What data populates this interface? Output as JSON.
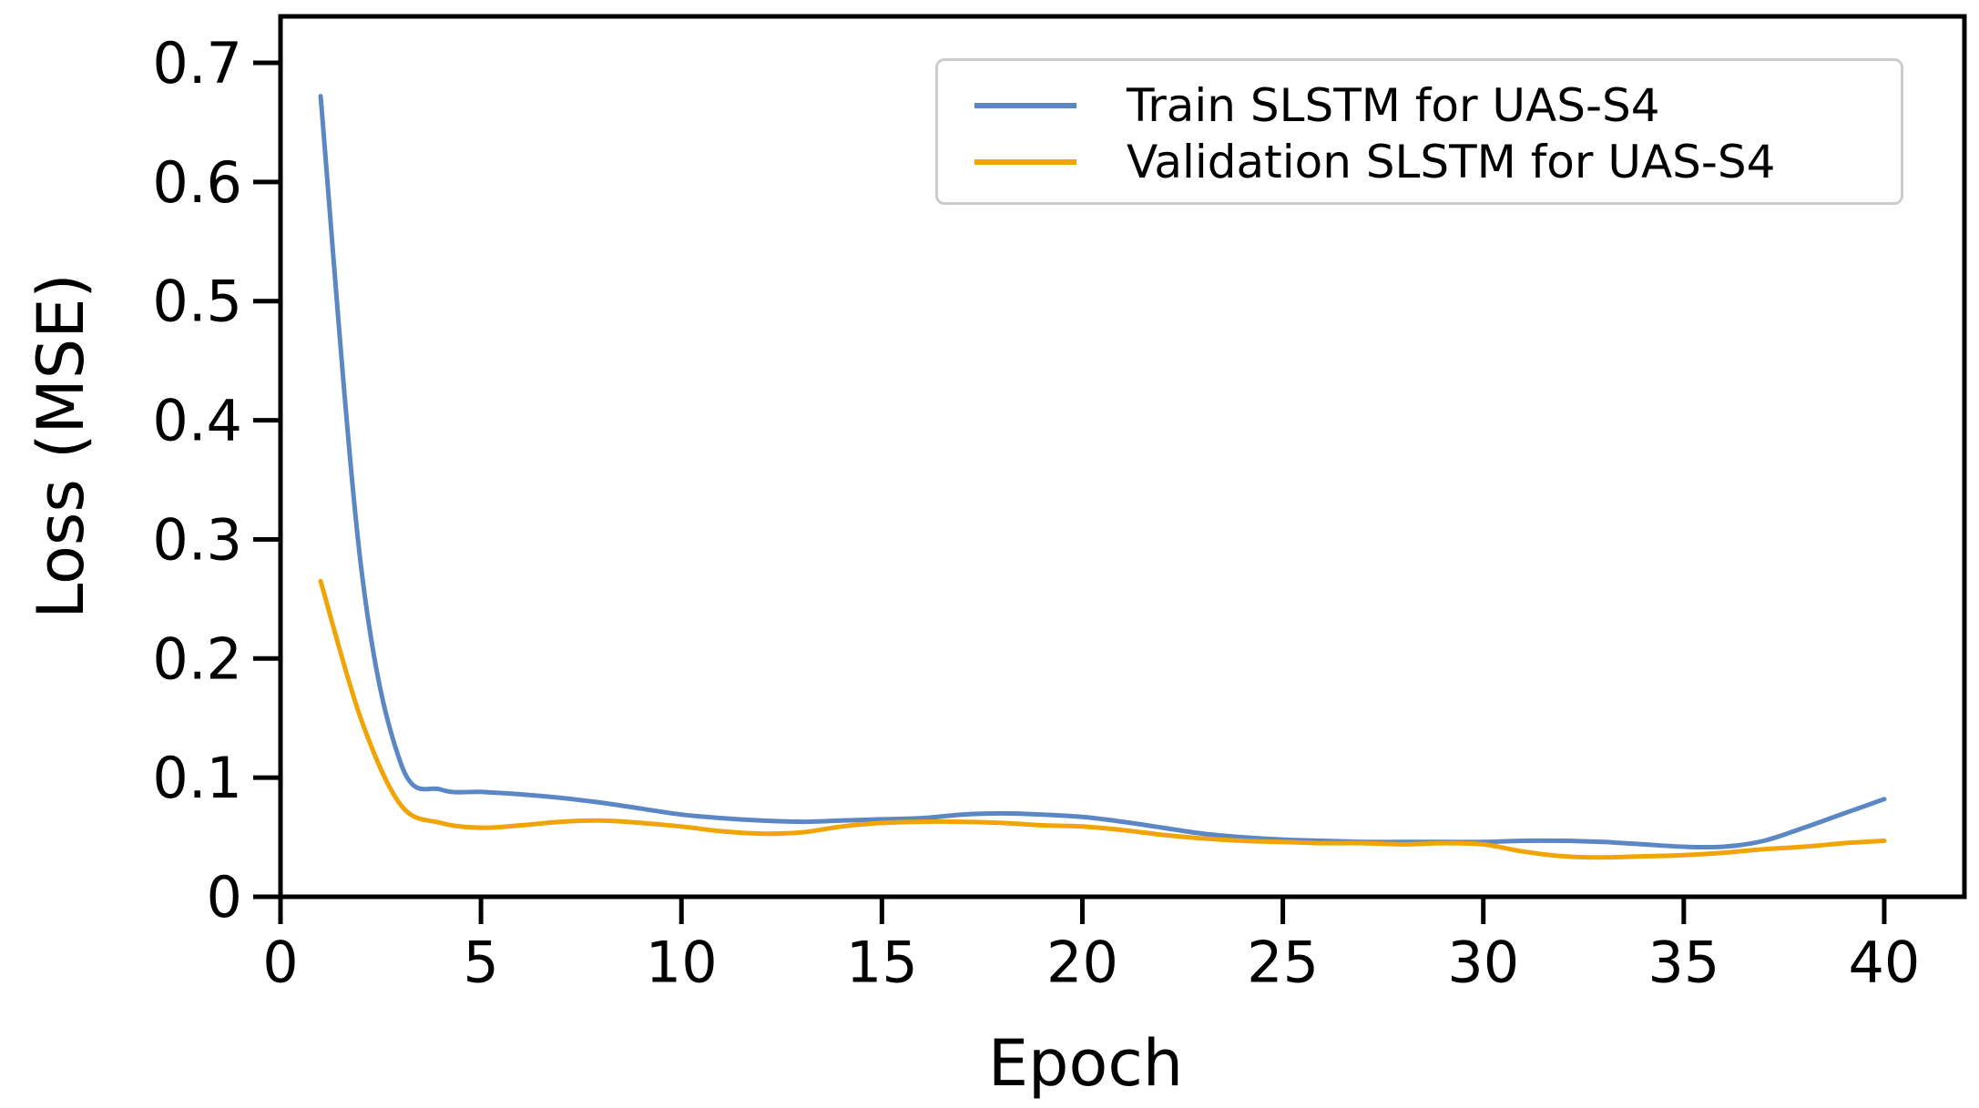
{
  "chart_data": {
    "type": "line",
    "title": "",
    "xlabel": "Epoch",
    "ylabel": "Loss (MSE)",
    "xlim": [
      0,
      42
    ],
    "ylim": [
      0,
      0.739
    ],
    "grid": false,
    "legend_position": "upper right",
    "background": "#ffffff",
    "spine_color": "#000000",
    "xticks": [
      0,
      5,
      10,
      15,
      20,
      25,
      30,
      35,
      40
    ],
    "xtick_labels": [
      "0",
      "5",
      "10",
      "15",
      "20",
      "25",
      "30",
      "35",
      "40"
    ],
    "yticks": [
      0,
      0.1,
      0.2,
      0.3,
      0.4,
      0.5,
      0.6,
      0.7
    ],
    "ytick_labels": [
      "0",
      "0.1",
      "0.2",
      "0.3",
      "0.4",
      "0.5",
      "0.6",
      "0.7"
    ],
    "x": [
      1,
      2,
      3,
      4,
      5,
      6,
      7,
      8,
      9,
      10,
      11,
      12,
      13,
      14,
      15,
      16,
      17,
      18,
      19,
      20,
      21,
      22,
      23,
      24,
      25,
      26,
      27,
      28,
      29,
      30,
      31,
      32,
      33,
      34,
      35,
      36,
      37,
      38,
      39,
      40
    ],
    "series": [
      {
        "name": "Train SLSTM for UAS-S4",
        "color": "#5b87c4",
        "values": [
          0.672,
          0.28,
          0.112,
          0.09,
          0.088,
          0.086,
          0.083,
          0.079,
          0.074,
          0.069,
          0.066,
          0.064,
          0.063,
          0.064,
          0.065,
          0.066,
          0.069,
          0.07,
          0.069,
          0.067,
          0.063,
          0.058,
          0.053,
          0.05,
          0.048,
          0.047,
          0.046,
          0.046,
          0.046,
          0.046,
          0.047,
          0.047,
          0.046,
          0.044,
          0.042,
          0.042,
          0.047,
          0.058,
          0.07,
          0.082
        ]
      },
      {
        "name": "Validation SLSTM for UAS-S4",
        "color": "#f0a406",
        "values": [
          0.265,
          0.15,
          0.077,
          0.062,
          0.058,
          0.06,
          0.063,
          0.064,
          0.062,
          0.059,
          0.055,
          0.053,
          0.054,
          0.059,
          0.062,
          0.063,
          0.063,
          0.062,
          0.06,
          0.059,
          0.056,
          0.052,
          0.049,
          0.047,
          0.046,
          0.045,
          0.045,
          0.044,
          0.045,
          0.044,
          0.038,
          0.034,
          0.033,
          0.034,
          0.035,
          0.037,
          0.04,
          0.042,
          0.045,
          0.047
        ]
      }
    ]
  }
}
